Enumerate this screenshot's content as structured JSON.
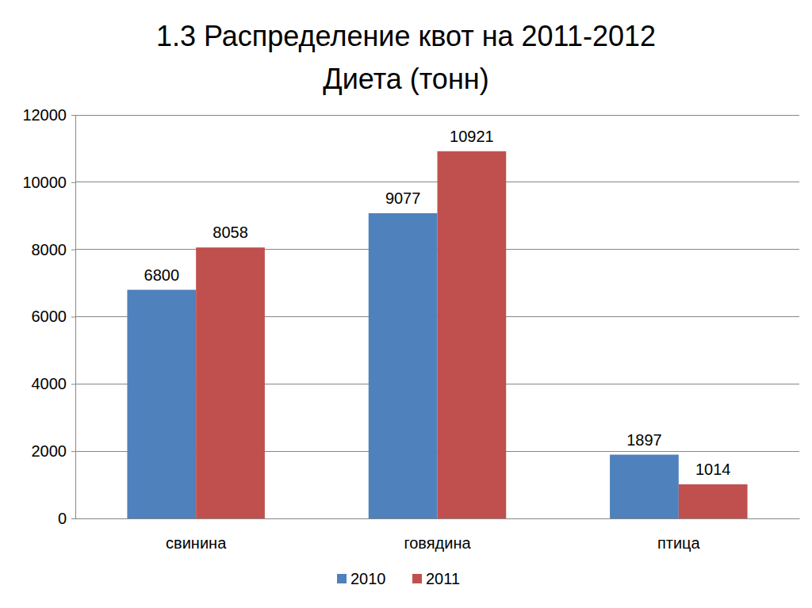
{
  "chart_data": {
    "type": "bar",
    "title": "1.3 Распределение квот на 2011-2012",
    "subtitle": "Диета (тонн)",
    "categories": [
      "свинина",
      "говядина",
      "птица"
    ],
    "series": [
      {
        "name": "2010",
        "color": "#4f81bd",
        "values": [
          6800,
          9077,
          1897
        ]
      },
      {
        "name": "2011",
        "color": "#c0504d",
        "values": [
          8058,
          10921,
          1014
        ]
      }
    ],
    "ylim": [
      0,
      12000
    ],
    "yticks": [
      0,
      2000,
      4000,
      6000,
      8000,
      10000,
      12000
    ],
    "grid": true,
    "data_labels": true,
    "legend": "bottom"
  }
}
